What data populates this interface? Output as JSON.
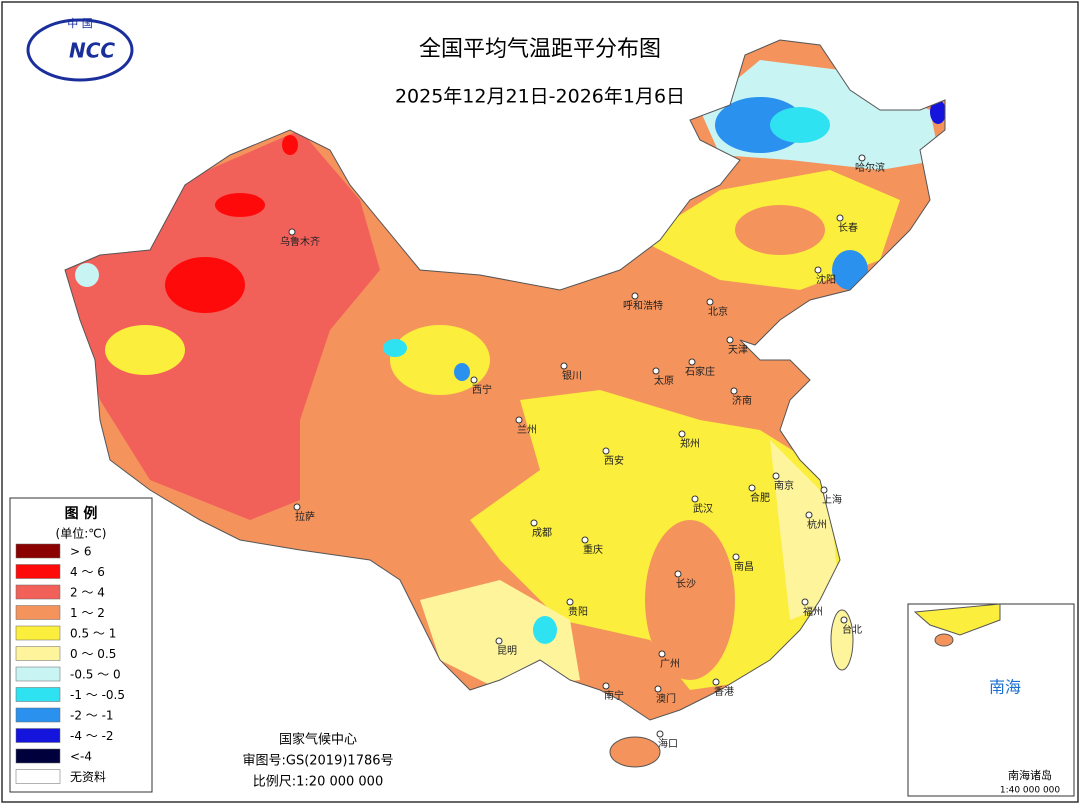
{
  "header": {
    "logo_top": "中 国",
    "logo_mark": "NCC",
    "title": "全国平均气温距平分布图",
    "subtitle": "2025年12月21日-2026年1月6日"
  },
  "legend": {
    "title": "图 例",
    "unit": "(单位:℃)",
    "items": [
      {
        "label": "> 6",
        "color": "#8b0000"
      },
      {
        "label": "4 ～ 6",
        "color": "#ff0a0a"
      },
      {
        "label": "2 ～ 4",
        "color": "#f2605a"
      },
      {
        "label": "1 ～ 2",
        "color": "#f4935c"
      },
      {
        "label": "0.5 ～ 1",
        "color": "#fbee3c"
      },
      {
        "label": "0 ～ 0.5",
        "color": "#fdf49c"
      },
      {
        "label": "-0.5 ～ 0",
        "color": "#c9f4f4"
      },
      {
        "label": "-1 ～ -0.5",
        "color": "#2ee2f2"
      },
      {
        "label": "-2 ～ -1",
        "color": "#2a92ee"
      },
      {
        "label": "-4 ～ -2",
        "color": "#1414dc"
      },
      {
        "label": "<-4",
        "color": "#00003c"
      },
      {
        "label": "无资料",
        "color": "#ffffff"
      }
    ]
  },
  "cities": [
    "乌鲁木齐",
    "哈尔滨",
    "长春",
    "沈阳",
    "呼和浩特",
    "北京",
    "天津",
    "石家庄",
    "太原",
    "银川",
    "西宁",
    "兰州",
    "济南",
    "郑州",
    "西安",
    "南京",
    "合肥",
    "上海",
    "杭州",
    "武汉",
    "成都",
    "重庆",
    "拉萨",
    "南昌",
    "长沙",
    "贵阳",
    "福州",
    "台北",
    "昆明",
    "广州",
    "南宁",
    "澳门",
    "香港",
    "海口"
  ],
  "footer": {
    "agency": "国家气候中心",
    "approval": "审图号:GS(2019)1786号",
    "scale": "比例尺:1:20 000 000"
  },
  "inset": {
    "sea": "南海",
    "islands": "南海诸岛",
    "scale": "1:40 000 000"
  }
}
